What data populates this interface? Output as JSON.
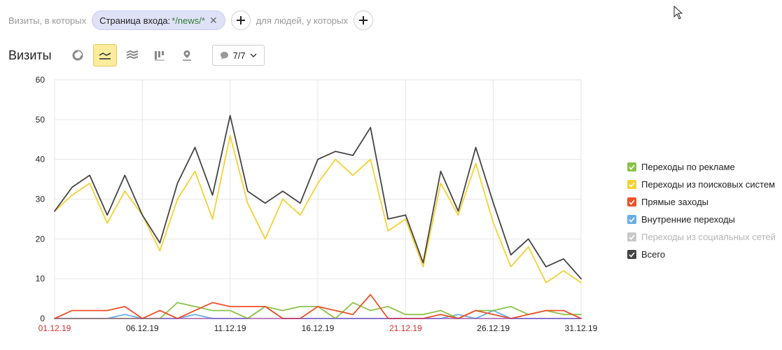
{
  "filter": {
    "visits_prefix": "Визиты, в которых",
    "chip_label": "Страница входа: ",
    "chip_value": "*/news/*",
    "people_prefix": "для людей, у которых"
  },
  "toolbar": {
    "title": "Визиты",
    "metrics_count": "7/7"
  },
  "legend": [
    {
      "label": "Переходы по рекламе",
      "color": "#8bc34a",
      "enabled": true
    },
    {
      "label": "Переходы из поисковых систем",
      "color": "#f5d133",
      "enabled": true
    },
    {
      "label": "Прямые заходы",
      "color": "#ef5029",
      "enabled": true
    },
    {
      "label": "Внутренние переходы",
      "color": "#6aaee8",
      "enabled": true
    },
    {
      "label": "Переходы из социальных сетей",
      "color": "#c8c8c8",
      "enabled": false
    },
    {
      "label": "Всего",
      "color": "#444444",
      "enabled": true
    }
  ],
  "chart_data": {
    "type": "line",
    "ylim": [
      0,
      60
    ],
    "y_ticks": [
      "0",
      "10",
      "20",
      "30",
      "40",
      "50",
      "60"
    ],
    "x": [
      "01.12.19",
      "02.12.19",
      "03.12.19",
      "04.12.19",
      "05.12.19",
      "06.12.19",
      "07.12.19",
      "08.12.19",
      "09.12.19",
      "10.12.19",
      "11.12.19",
      "12.12.19",
      "13.12.19",
      "14.12.19",
      "15.12.19",
      "16.12.19",
      "17.12.19",
      "18.12.19",
      "19.12.19",
      "20.12.19",
      "21.12.19",
      "22.12.19",
      "23.12.19",
      "24.12.19",
      "25.12.19",
      "26.12.19",
      "27.12.19",
      "28.12.19",
      "29.12.19",
      "30.12.19",
      "31.12.19"
    ],
    "x_tick_labels": [
      {
        "label": "01.12.19",
        "weekend": true
      },
      {
        "label": "06.12.19",
        "weekend": false
      },
      {
        "label": "11.12.19",
        "weekend": false
      },
      {
        "label": "16.12.19",
        "weekend": false
      },
      {
        "label": "21.12.19",
        "weekend": true
      },
      {
        "label": "26.12.19",
        "weekend": false
      },
      {
        "label": "31.12.19",
        "weekend": false
      }
    ],
    "series": [
      {
        "name": "Переходы из социальных сетей",
        "color": "#c8c8c8",
        "enabled": false,
        "values": [
          0,
          0,
          0,
          0,
          0,
          0,
          0,
          0,
          0,
          0,
          0,
          0,
          0,
          0,
          0,
          0,
          0,
          0,
          0,
          0,
          0,
          0,
          0,
          0,
          0,
          0,
          0,
          0,
          0,
          0,
          0
        ]
      },
      {
        "name": "Внутренние переходы",
        "color": "#6aaee8",
        "enabled": true,
        "values": [
          0,
          0,
          0,
          0,
          1,
          0,
          0,
          0,
          1,
          0,
          0,
          0,
          3,
          0,
          0,
          0,
          0,
          0,
          0,
          0,
          0,
          0,
          0,
          1,
          0,
          2,
          0,
          0,
          0,
          0,
          0
        ]
      },
      {
        "name": "Переходы по рекламе",
        "color": "#8bc34a",
        "enabled": true,
        "values": [
          0,
          0,
          0,
          0,
          0,
          0,
          0,
          4,
          3,
          2,
          2,
          0,
          3,
          2,
          3,
          3,
          0,
          4,
          2,
          3,
          1,
          1,
          2,
          0,
          2,
          2,
          3,
          1,
          2,
          1,
          1
        ]
      },
      {
        "name": "Прямые заходы",
        "color": "#ef5029",
        "enabled": true,
        "values": [
          0,
          2,
          2,
          2,
          3,
          0,
          2,
          0,
          2,
          4,
          3,
          3,
          3,
          0,
          0,
          3,
          2,
          1,
          6,
          0,
          0,
          0,
          1,
          0,
          2,
          1,
          0,
          1,
          2,
          2,
          0
        ]
      },
      {
        "name": "Переходы из поисковых систем",
        "color": "#f5d133",
        "enabled": true,
        "values": [
          27,
          31,
          34,
          24,
          32,
          26,
          17,
          30,
          37,
          25,
          46,
          29,
          20,
          30,
          26,
          34,
          40,
          36,
          40,
          22,
          25,
          13,
          34,
          26,
          39,
          24,
          13,
          18,
          9,
          12,
          9
        ]
      },
      {
        "name": "Всего",
        "color": "#444444",
        "enabled": true,
        "values": [
          27,
          33,
          36,
          26,
          36,
          26,
          19,
          34,
          43,
          31,
          51,
          32,
          29,
          32,
          29,
          40,
          42,
          41,
          48,
          25,
          26,
          14,
          37,
          27,
          43,
          29,
          16,
          20,
          13,
          15,
          10
        ]
      }
    ]
  }
}
